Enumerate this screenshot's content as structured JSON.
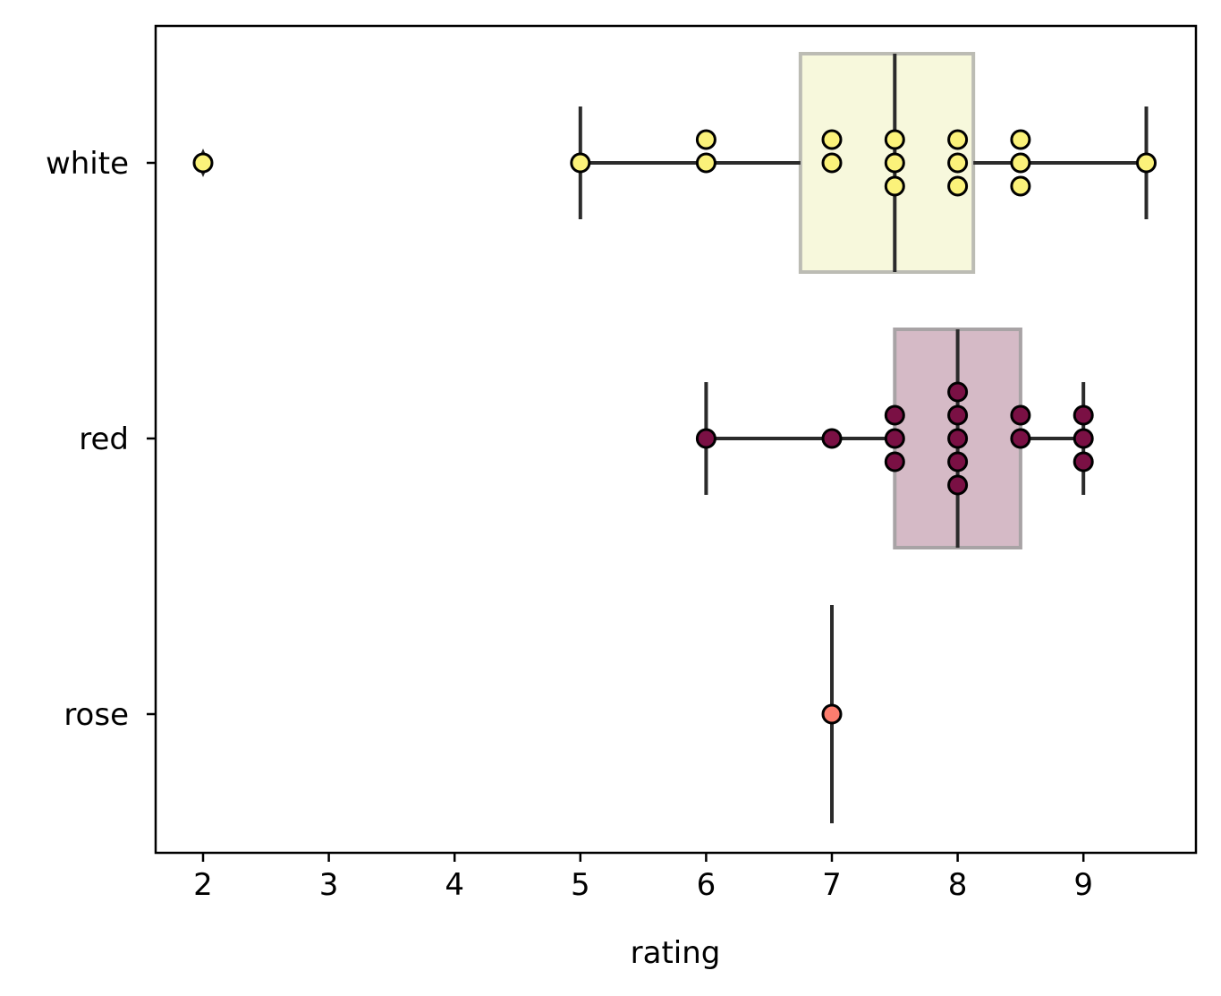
{
  "chart_data": {
    "type": "box",
    "orientation": "horizontal",
    "xlabel": "rating",
    "ylabel": "",
    "xlim": [
      1.62,
      9.88
    ],
    "xticks": [
      2,
      3,
      4,
      5,
      6,
      7,
      8,
      9
    ],
    "categories": [
      "white",
      "red",
      "rose"
    ],
    "grid": false,
    "series": [
      {
        "category": "white",
        "color": "#fbf27a",
        "box_fill": "#f7f8dc",
        "box_edge": "#bcbcb4",
        "box": {
          "q1": 6.75,
          "median": 7.5,
          "q3": 8.125
        },
        "whiskers": [
          5.0,
          9.5
        ],
        "outliers": [
          2.0
        ],
        "points": [
          {
            "x": 2.0,
            "stack": 0
          },
          {
            "x": 5.0,
            "stack": 0
          },
          {
            "x": 6.0,
            "stack": 0
          },
          {
            "x": 6.0,
            "stack": -1
          },
          {
            "x": 7.0,
            "stack": 0
          },
          {
            "x": 7.0,
            "stack": -1
          },
          {
            "x": 7.5,
            "stack": 0
          },
          {
            "x": 7.5,
            "stack": -1
          },
          {
            "x": 7.5,
            "stack": 1
          },
          {
            "x": 8.0,
            "stack": 0
          },
          {
            "x": 8.0,
            "stack": -1
          },
          {
            "x": 8.0,
            "stack": 1
          },
          {
            "x": 8.5,
            "stack": 0
          },
          {
            "x": 8.5,
            "stack": -1
          },
          {
            "x": 8.5,
            "stack": 1
          },
          {
            "x": 9.5,
            "stack": 0
          }
        ]
      },
      {
        "category": "red",
        "color": "#7a1044",
        "box_fill": "#d5bac6",
        "box_edge": "#a8a3a5",
        "box": {
          "q1": 7.5,
          "median": 8.0,
          "q3": 8.5
        },
        "whiskers": [
          6.0,
          9.0
        ],
        "outliers": [],
        "points": [
          {
            "x": 6.0,
            "stack": 0
          },
          {
            "x": 7.0,
            "stack": 0
          },
          {
            "x": 7.5,
            "stack": 0
          },
          {
            "x": 7.5,
            "stack": -1
          },
          {
            "x": 7.5,
            "stack": 1
          },
          {
            "x": 8.0,
            "stack": 0
          },
          {
            "x": 8.0,
            "stack": -1
          },
          {
            "x": 8.0,
            "stack": 1
          },
          {
            "x": 8.0,
            "stack": -2
          },
          {
            "x": 8.0,
            "stack": 2
          },
          {
            "x": 8.5,
            "stack": 0
          },
          {
            "x": 8.5,
            "stack": -1
          },
          {
            "x": 9.0,
            "stack": 0
          },
          {
            "x": 9.0,
            "stack": -1
          },
          {
            "x": 9.0,
            "stack": 1
          }
        ]
      },
      {
        "category": "rose",
        "color": "#fb7d6e",
        "box_fill": "#fdd5cf",
        "box_edge": "#a8a3a5",
        "box": {
          "q1": 7.0,
          "median": 7.0,
          "q3": 7.0
        },
        "whiskers": [
          7.0,
          7.0
        ],
        "outliers": [],
        "points": [
          {
            "x": 7.0,
            "stack": 0
          }
        ]
      }
    ]
  }
}
